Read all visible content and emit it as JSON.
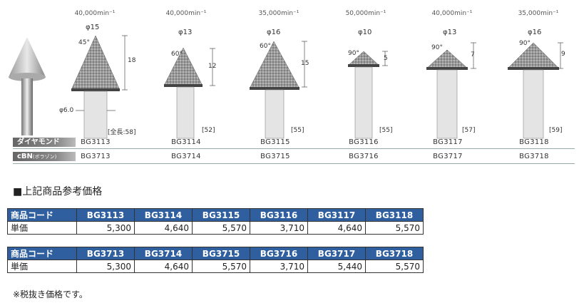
{
  "products": [
    {
      "speed": "40,000min⁻¹",
      "phi": "φ15",
      "angle": "45°",
      "height": "18",
      "ref": "[全長:58]",
      "shaft": "φ6.0",
      "dia_code": "BG3113",
      "cbn_code": "BG3713"
    },
    {
      "speed": "40,000min⁻¹",
      "phi": "φ13",
      "angle": "60°",
      "height": "12",
      "ref": "[52]",
      "dia_code": "BG3114",
      "cbn_code": "BG3714"
    },
    {
      "speed": "35,000min⁻¹",
      "phi": "φ16",
      "angle": "60°",
      "height": "15",
      "ref": "[55]",
      "dia_code": "BG3115",
      "cbn_code": "BG3715"
    },
    {
      "speed": "50,000min⁻¹",
      "phi": "φ10",
      "angle": "90°",
      "height": "5",
      "ref": "[55]",
      "dia_code": "BG3116",
      "cbn_code": "BG3716"
    },
    {
      "speed": "40,000min⁻¹",
      "phi": "φ13",
      "angle": "90°",
      "height": "7",
      "ref": "[57]",
      "dia_code": "BG3117",
      "cbn_code": "BG3717"
    },
    {
      "speed": "35,000min⁻¹",
      "phi": "φ16",
      "angle": "90°",
      "height": "9",
      "ref": "[59]",
      "dia_code": "BG3118",
      "cbn_code": "BG3718"
    }
  ],
  "row_labels": {
    "diamond": "ダイヤモンド",
    "cbn": "cBN",
    "cbn_sub": "(ボラゾン)"
  },
  "section_title": "■上記商品参考価格",
  "table1": {
    "code_label": "商品コード",
    "price_label": "単価",
    "codes": [
      "BG3113",
      "BG3114",
      "BG3115",
      "BG3116",
      "BG3117",
      "BG3118"
    ],
    "prices": [
      "5,300",
      "4,640",
      "5,570",
      "3,710",
      "4,640",
      "5,570"
    ]
  },
  "table2": {
    "code_label": "商品コード",
    "price_label": "単価",
    "codes": [
      "BG3713",
      "BG3714",
      "BG3715",
      "BG3716",
      "BG3717",
      "BG3718"
    ],
    "prices": [
      "5,300",
      "4,640",
      "5,570",
      "3,710",
      "5,440",
      "5,570"
    ]
  },
  "note": "※税抜き価格です。",
  "colors": {
    "header_bg": "#2f5f9f",
    "row_label_bg": "#777777"
  }
}
